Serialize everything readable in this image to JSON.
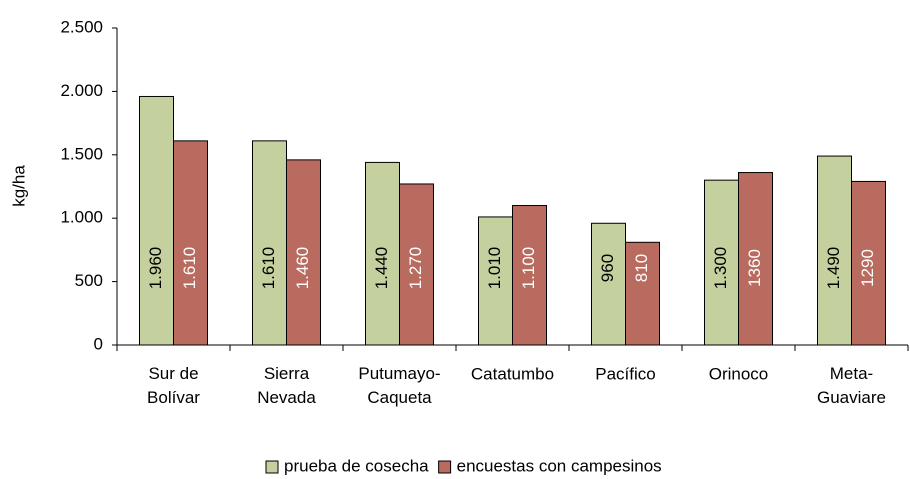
{
  "chart_data": {
    "type": "bar",
    "y_label": "kg/ha",
    "categories": [
      "Sur de\nBolívar",
      "Sierra\nNevada",
      "Putumayo-\nCaqueta",
      "Catatumbo",
      "Pacífico",
      "Orinoco",
      "Meta-\nGuaviare"
    ],
    "series": [
      {
        "name": "prueba de cosecha",
        "color": "#c4d09e",
        "label_color": "#000000",
        "values": [
          1960,
          1610,
          1440,
          1010,
          960,
          1300,
          1490
        ],
        "value_labels": [
          "1.960",
          "1.610",
          "1.440",
          "1.010",
          "960",
          "1.300",
          "1.490"
        ]
      },
      {
        "name": "encuestas con campesinos",
        "color": "#b86b5e",
        "label_color": "#ffffff",
        "values": [
          1610,
          1460,
          1270,
          1100,
          810,
          1360,
          1290
        ],
        "value_labels": [
          "1.610",
          "1.460",
          "1.270",
          "1.100",
          "810",
          "1360",
          "1290"
        ]
      }
    ],
    "ylim": [
      0,
      2500
    ],
    "yticks": [
      0,
      500,
      {
        "value": 1000,
        "label": "1.000"
      },
      {
        "value": 1500,
        "label": "1.500"
      },
      {
        "value": 2000,
        "label": "2.000"
      },
      {
        "value": 2500,
        "label": "2.500"
      }
    ],
    "grid": false,
    "legend": "bottom"
  }
}
